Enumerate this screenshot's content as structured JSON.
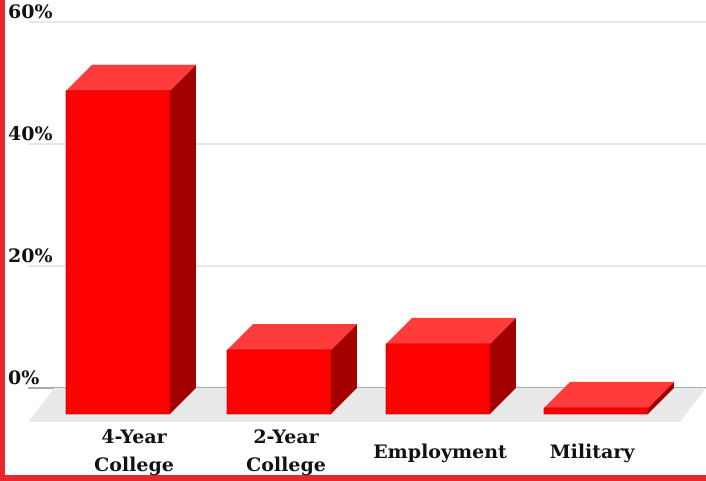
{
  "chart_data": {
    "type": "bar",
    "style": "3d",
    "categories": [
      [
        "4-Year",
        "College"
      ],
      [
        "2-Year",
        "College"
      ],
      [
        "Employment"
      ],
      [
        "Military"
      ]
    ],
    "values": [
      53,
      10.5,
      11.5,
      1
    ],
    "yticks": [
      "0%",
      "20%",
      "40%",
      "60%"
    ],
    "ytick_values": [
      0,
      20,
      40,
      60
    ],
    "ylim": [
      0,
      60
    ],
    "grid": true,
    "colors": {
      "bar_front": "#ff0000",
      "bar_top": "#ff3b3b",
      "bar_side": "#a30000",
      "frame": "#e8262b",
      "grid": "#cfcfcf",
      "floor": "#e9e9e9"
    }
  }
}
